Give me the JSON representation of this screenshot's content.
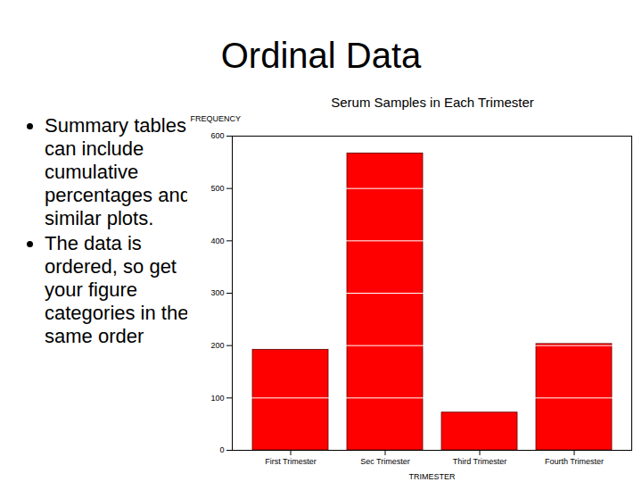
{
  "slide": {
    "title": "Ordinal Data",
    "bullets": [
      "Summary tables can include cumulative percentages and similar plots.",
      "The data is ordered, so get your figure categories in the same order"
    ]
  },
  "chart_data": {
    "type": "bar",
    "title": "Serum Samples in Each Trimester",
    "x_label": "TRIMESTER",
    "y_label": "FREQUENCY",
    "categories": [
      "First Trimester",
      "Sec Trimester",
      "Third Trimester",
      "Fourth Trimester"
    ],
    "values": [
      192,
      567,
      72,
      203
    ],
    "color": "#ff0000",
    "ylim": [
      0,
      600
    ],
    "yticks": [
      0,
      100,
      200,
      300,
      400,
      500,
      600
    ],
    "grid": true
  }
}
